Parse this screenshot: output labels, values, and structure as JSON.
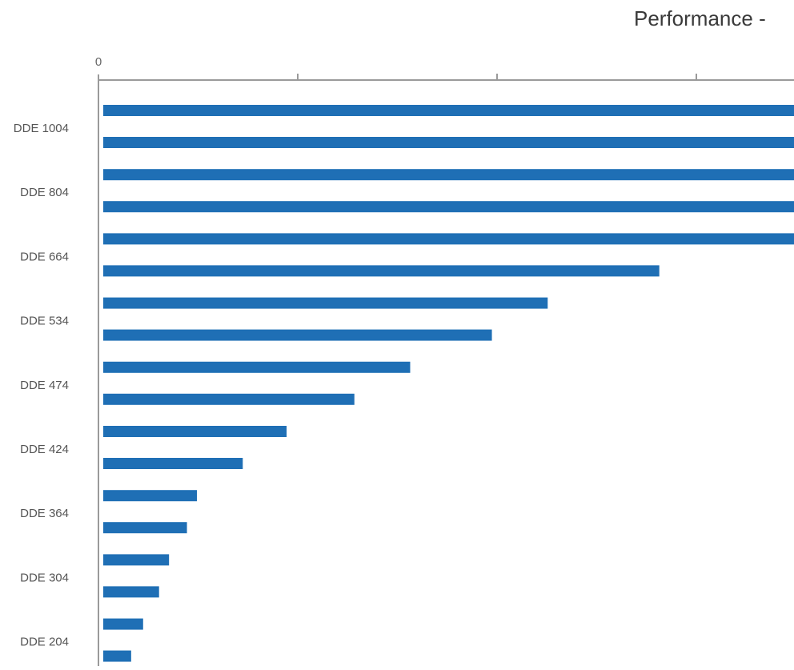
{
  "chart_data": {
    "type": "bar",
    "orientation": "horizontal",
    "title": "Performance -",
    "categories": [
      "DDE 1004",
      "DDE 804",
      "DDE 664",
      "DDE 534",
      "DDE 474",
      "DDE 424",
      "DDE 364",
      "DDE 304",
      "DDE 204"
    ],
    "series": [
      {
        "values": [
          3.5,
          3.5,
          3.5,
          2.23,
          1.54,
          0.92,
          0.47,
          0.33,
          0.2
        ]
      },
      {
        "values": [
          3.5,
          3.5,
          2.79,
          1.95,
          1.26,
          0.7,
          0.42,
          0.28,
          0.14
        ]
      }
    ],
    "xaxis": {
      "tick_labels": [
        "0",
        "",
        "",
        ""
      ],
      "visible_range": [
        0,
        3.5
      ],
      "ticks": [
        0,
        1,
        2,
        3
      ]
    },
    "xlabel": "",
    "ylabel": "",
    "grid": false,
    "legend": "none",
    "colors": {
      "bar": "#1f6fb5",
      "axis": "#9a9a9a"
    }
  }
}
